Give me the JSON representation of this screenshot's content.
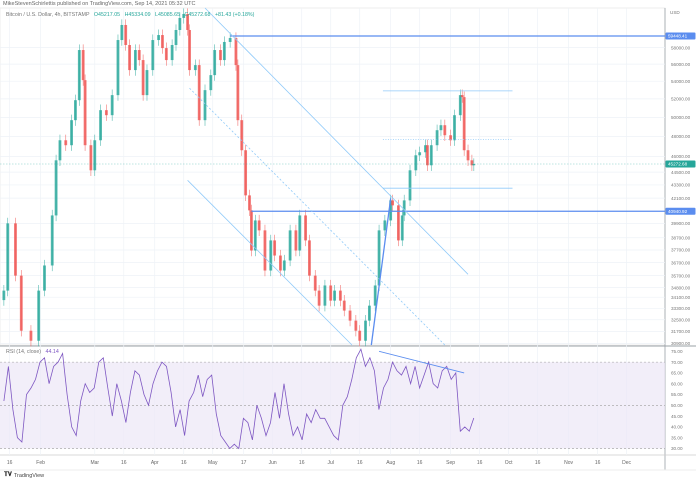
{
  "header": {
    "published": "MikeStevenSchirlettis published on TradingView.com, Sep 14, 2021 05:32 UTC",
    "symbol": "Bitcoin / U.S. Dollar, 4h, BITSTAMP",
    "open": "O45217.05",
    "high": "H45334.09",
    "low": "L45085.65",
    "close": "C45272.68",
    "change": "+81.43 (+0.18%)"
  },
  "rsi_legend": {
    "label": "RSI (14, close)",
    "value": "44.14"
  },
  "footer": {
    "brand": "TradingView",
    "logo_icon": "tradingview-logo-icon"
  },
  "colors": {
    "up": "#26a69a",
    "down": "#ef5350",
    "drawing": "#90caf9",
    "level": "#5b8def",
    "rsi": "#7e57c2",
    "rsi_band": "#ede7f6"
  },
  "chart_data": [
    {
      "type": "candlestick",
      "title": "Bitcoin / U.S. Dollar, 4h, BITSTAMP",
      "y_scale": "log",
      "ylim": [
        30800,
        63100
      ],
      "xlim": [
        "2021-01-11",
        "2021-12-31"
      ],
      "grid": true,
      "x_ticks": [
        {
          "date": "2021-01-16",
          "label": "16"
        },
        {
          "date": "2021-02-01",
          "label": "Feb"
        },
        {
          "date": "2021-03-01",
          "label": "Mar"
        },
        {
          "date": "2021-03-16",
          "label": "16"
        },
        {
          "date": "2021-04-01",
          "label": "Apr"
        },
        {
          "date": "2021-04-16",
          "label": "16"
        },
        {
          "date": "2021-05-01",
          "label": "May"
        },
        {
          "date": "2021-05-17",
          "label": "17"
        },
        {
          "date": "2021-06-01",
          "label": "Jun"
        },
        {
          "date": "2021-06-16",
          "label": "16"
        },
        {
          "date": "2021-07-01",
          "label": "Jul"
        },
        {
          "date": "2021-07-16",
          "label": "16"
        },
        {
          "date": "2021-08-01",
          "label": "Aug"
        },
        {
          "date": "2021-08-16",
          "label": "16"
        },
        {
          "date": "2021-09-01",
          "label": "Sep"
        },
        {
          "date": "2021-09-16",
          "label": "16"
        },
        {
          "date": "2021-10-01",
          "label": "Oct"
        },
        {
          "date": "2021-10-16",
          "label": "16"
        },
        {
          "date": "2021-11-01",
          "label": "Nov"
        },
        {
          "date": "2021-11-16",
          "label": "16"
        },
        {
          "date": "2021-12-01",
          "label": "Dec"
        }
      ],
      "y_ticks": [
        "58000.00",
        "56000.00",
        "54000.00",
        "52000.00",
        "50000.00",
        "48000.00",
        "46000.00",
        "44500.00",
        "43300.00",
        "42100.00",
        "39900.00",
        "38700.00",
        "37700.00",
        "36700.00",
        "35700.00",
        "34800.00",
        "34100.00",
        "33300.00",
        "32500.00",
        "31700.00",
        "30900.00"
      ],
      "axis_currency": "USD",
      "price_labels": [
        {
          "value": "59448.41",
          "kind": "level"
        },
        {
          "value": "40940.92",
          "kind": "level"
        },
        {
          "value": "45272.68",
          "kind": "last"
        }
      ],
      "closes": [
        [
          "2021-01-13",
          34580
        ],
        [
          "2021-01-15",
          39900
        ],
        [
          "2021-01-19",
          35700
        ],
        [
          "2021-01-22",
          31750
        ],
        [
          "2021-01-27",
          31080
        ],
        [
          "2021-01-31",
          34580
        ],
        [
          "2021-02-03",
          36480
        ],
        [
          "2021-02-07",
          40580
        ],
        [
          "2021-02-09",
          45630
        ],
        [
          "2021-02-11",
          47620
        ],
        [
          "2021-02-14",
          47120
        ],
        [
          "2021-02-17",
          49700
        ],
        [
          "2021-02-19",
          51860
        ],
        [
          "2021-02-21",
          57700
        ],
        [
          "2021-02-23",
          54120
        ],
        [
          "2021-02-24",
          47120
        ],
        [
          "2021-02-27",
          44670
        ],
        [
          "2021-03-01",
          47620
        ],
        [
          "2021-03-04",
          50770
        ],
        [
          "2021-03-07",
          50230
        ],
        [
          "2021-03-10",
          52420
        ],
        [
          "2021-03-13",
          58940
        ],
        [
          "2021-03-15",
          60860
        ],
        [
          "2021-03-17",
          58320
        ],
        [
          "2021-03-19",
          55290
        ],
        [
          "2021-03-22",
          57700
        ],
        [
          "2021-03-24",
          56480
        ],
        [
          "2021-03-26",
          52420
        ],
        [
          "2021-03-28",
          55290
        ],
        [
          "2021-03-31",
          58940
        ],
        [
          "2021-04-03",
          59570
        ],
        [
          "2021-04-05",
          57940
        ],
        [
          "2021-04-07",
          56480
        ],
        [
          "2021-04-10",
          58320
        ],
        [
          "2021-04-12",
          60215
        ],
        [
          "2021-04-14",
          61780
        ],
        [
          "2021-04-16",
          62300
        ],
        [
          "2021-04-18",
          60215
        ],
        [
          "2021-04-19",
          55290
        ],
        [
          "2021-04-22",
          55880
        ],
        [
          "2021-04-24",
          49700
        ],
        [
          "2021-04-27",
          52980
        ],
        [
          "2021-04-30",
          54700
        ],
        [
          "2021-05-02",
          57700
        ],
        [
          "2021-05-05",
          56480
        ],
        [
          "2021-05-07",
          58700
        ],
        [
          "2021-05-10",
          59200
        ],
        [
          "2021-05-13",
          55880
        ],
        [
          "2021-05-14",
          49700
        ],
        [
          "2021-05-16",
          46620
        ],
        [
          "2021-05-18",
          42350
        ],
        [
          "2021-05-20",
          41020
        ],
        [
          "2021-05-21",
          37660
        ],
        [
          "2021-05-23",
          40150
        ],
        [
          "2021-05-25",
          39310
        ],
        [
          "2021-05-28",
          36090
        ],
        [
          "2021-05-31",
          38480
        ],
        [
          "2021-06-02",
          37260
        ],
        [
          "2021-06-05",
          36090
        ],
        [
          "2021-06-07",
          36870
        ],
        [
          "2021-06-10",
          39310
        ],
        [
          "2021-06-13",
          37660
        ],
        [
          "2021-06-15",
          40580
        ],
        [
          "2021-06-18",
          38480
        ],
        [
          "2021-06-20",
          35700
        ],
        [
          "2021-06-23",
          34580
        ],
        [
          "2021-06-25",
          33490
        ],
        [
          "2021-06-28",
          34960
        ],
        [
          "2021-07-01",
          33850
        ],
        [
          "2021-07-03",
          34580
        ],
        [
          "2021-07-06",
          33850
        ],
        [
          "2021-07-08",
          33140
        ],
        [
          "2021-07-11",
          32440
        ],
        [
          "2021-07-14",
          31750
        ],
        [
          "2021-07-16",
          31080
        ],
        [
          "2021-07-19",
          32440
        ],
        [
          "2021-07-21",
          33490
        ],
        [
          "2021-07-24",
          34960
        ],
        [
          "2021-07-26",
          39310
        ],
        [
          "2021-07-29",
          40150
        ],
        [
          "2021-08-01",
          41900
        ],
        [
          "2021-08-02",
          41460
        ],
        [
          "2021-08-05",
          38480
        ],
        [
          "2021-08-07",
          40580
        ],
        [
          "2021-08-08",
          41900
        ],
        [
          "2021-08-11",
          44670
        ],
        [
          "2021-08-14",
          46120
        ],
        [
          "2021-08-16",
          46420
        ],
        [
          "2021-08-19",
          47120
        ],
        [
          "2021-08-20",
          45150
        ],
        [
          "2021-08-22",
          47120
        ],
        [
          "2021-08-25",
          48650
        ],
        [
          "2021-08-27",
          49170
        ],
        [
          "2021-08-29",
          48130
        ],
        [
          "2021-09-01",
          47620
        ],
        [
          "2021-09-03",
          50230
        ],
        [
          "2021-09-06",
          52420
        ],
        [
          "2021-09-07",
          52200
        ],
        [
          "2021-09-08",
          46620
        ],
        [
          "2021-09-10",
          45630
        ],
        [
          "2021-09-12",
          45150
        ],
        [
          "2021-09-13",
          45272.68
        ]
      ],
      "drawings": [
        {
          "kind": "horizontal",
          "from": "2021-05-10",
          "to": "2021-12-31",
          "price": 59448.41,
          "style": "solid-bold"
        },
        {
          "kind": "horizontal",
          "from": "2021-05-21",
          "to": "2021-12-31",
          "price": 40940.92,
          "style": "solid-bold"
        },
        {
          "kind": "horizontal",
          "from": "2021-07-28",
          "to": "2021-10-03",
          "price": 52900,
          "style": "solid"
        },
        {
          "kind": "horizontal",
          "from": "2021-07-28",
          "to": "2021-10-03",
          "price": 47700,
          "style": "dotted"
        },
        {
          "kind": "horizontal",
          "from": "2021-07-28",
          "to": "2021-10-03",
          "price": 43000,
          "style": "solid"
        },
        {
          "kind": "trend",
          "from": [
            "2021-04-27",
            63100
          ],
          "to": [
            "2021-09-10",
            35800
          ],
          "style": "solid"
        },
        {
          "kind": "trend",
          "from": [
            "2021-04-19",
            53200
          ],
          "to": [
            "2021-08-29",
            30800
          ],
          "style": "dashed"
        },
        {
          "kind": "trend",
          "from": [
            "2021-04-18",
            43730
          ],
          "to": [
            "2021-07-12",
            30800
          ],
          "style": "solid"
        },
        {
          "kind": "trend",
          "from": [
            "2021-07-22",
            30800
          ],
          "to": [
            "2021-08-01",
            42080
          ],
          "style": "solid-bold"
        }
      ]
    },
    {
      "type": "line",
      "title": "RSI (14, close)",
      "ylim": [
        27,
        77
      ],
      "bands": {
        "upper": 70,
        "middle": 50,
        "lower": 30
      },
      "y_ticks": [
        "75.00",
        "70.00",
        "65.00",
        "60.00",
        "55.00",
        "50.00",
        "45.00",
        "40.00",
        "35.00",
        "30.00"
      ],
      "values": [
        52,
        68,
        48,
        35,
        33,
        55,
        58,
        62,
        70,
        72,
        60,
        68,
        70,
        74,
        55,
        40,
        36,
        52,
        60,
        56,
        58,
        70,
        72,
        58,
        45,
        60,
        52,
        42,
        56,
        66,
        64,
        55,
        50,
        60,
        66,
        70,
        68,
        56,
        40,
        48,
        36,
        52,
        56,
        64,
        54,
        62,
        64,
        46,
        36,
        33,
        30,
        32,
        30,
        44,
        42,
        34,
        50,
        44,
        36,
        42,
        56,
        44,
        60,
        46,
        36,
        40,
        34,
        46,
        42,
        48,
        44,
        44,
        40,
        36,
        34,
        50,
        54,
        62,
        72,
        76,
        68,
        72,
        66,
        48,
        58,
        62,
        70,
        66,
        64,
        68,
        60,
        68,
        58,
        64,
        70,
        60,
        58,
        66,
        68,
        62,
        65,
        38,
        40,
        38,
        44.14
      ],
      "drawings": [
        {
          "kind": "trend",
          "from": [
            "2021-07-26",
            75
          ],
          "to": [
            "2021-09-08",
            65
          ]
        }
      ]
    }
  ]
}
